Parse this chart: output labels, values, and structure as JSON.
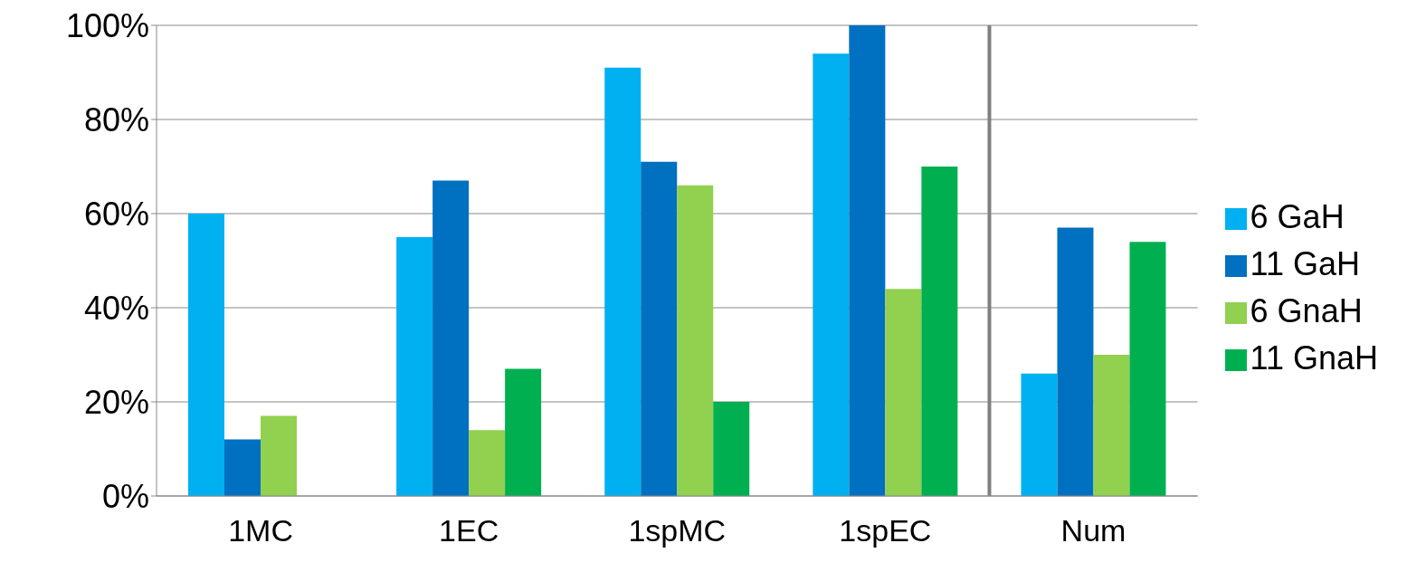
{
  "chart_data": {
    "type": "bar",
    "categories": [
      "1MC",
      "1EC",
      "1spMC",
      "1spEC",
      "Num"
    ],
    "series": [
      {
        "name": "6 GaH",
        "color": "#00b0f0",
        "values": [
          60,
          55,
          91,
          94,
          26
        ]
      },
      {
        "name": "11 GaH",
        "color": "#0070c0",
        "values": [
          12,
          67,
          71,
          100,
          57
        ]
      },
      {
        "name": "6 GnaH",
        "color": "#92d050",
        "values": [
          17,
          14,
          66,
          44,
          30
        ]
      },
      {
        "name": "11 GnaH",
        "color": "#00b050",
        "values": [
          0,
          27,
          20,
          70,
          54
        ]
      }
    ],
    "ylim": [
      0,
      100
    ],
    "yticks": [
      {
        "value": 0,
        "label": "0%"
      },
      {
        "value": 20,
        "label": "20%"
      },
      {
        "value": 40,
        "label": "40%"
      },
      {
        "value": 60,
        "label": "60%"
      },
      {
        "value": 80,
        "label": "80%"
      },
      {
        "value": 100,
        "label": "100%"
      }
    ],
    "grid": "y",
    "legend": "right",
    "ref_lines": [
      {
        "axis": "x",
        "value": "Num",
        "color": "#808080"
      }
    ]
  }
}
